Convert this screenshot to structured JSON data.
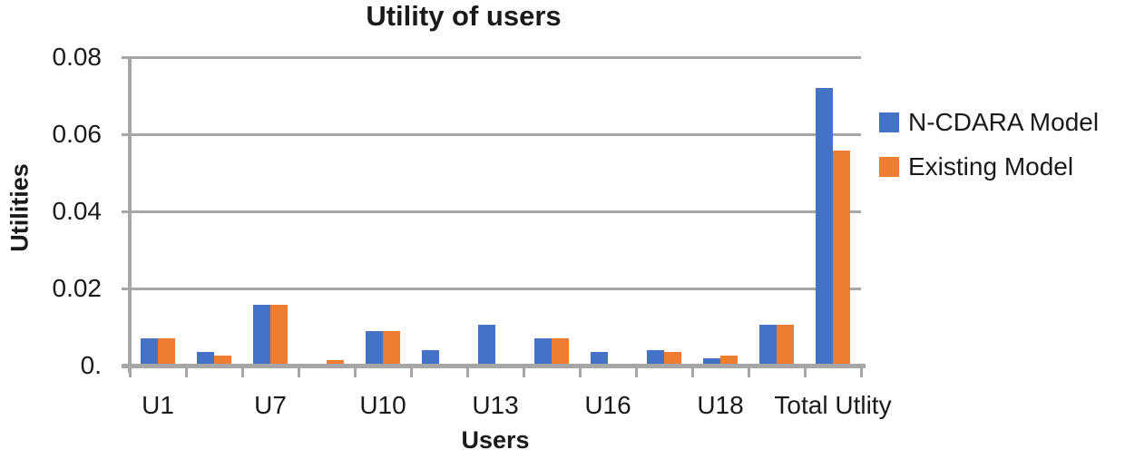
{
  "chart_data": {
    "type": "bar",
    "title": "Utility of users",
    "xlabel": "Users",
    "ylabel": "Utilities",
    "ylim": [
      0,
      0.08
    ],
    "ytick_step": 0.02,
    "ytick_labels": [
      "0.",
      "0.02",
      "0.04",
      "0.06",
      "0.08"
    ],
    "grid": "horizontal-only",
    "legend_position": "right",
    "categories": [
      "U1",
      "",
      "U7",
      "",
      "U10",
      "",
      "U13",
      "",
      "U16",
      "",
      "U18",
      "",
      "Total Utlity"
    ],
    "series": [
      {
        "name": "N-CDARA Model",
        "color": "#4472C4",
        "values": [
          0.0065,
          0.003,
          0.0152,
          0,
          0.0085,
          0.0035,
          0.01,
          0.0065,
          0.003,
          0.0035,
          0.0015,
          0.01,
          0.0715
        ]
      },
      {
        "name": "Existing Model",
        "color": "#ED7D31",
        "values": [
          0.0065,
          0.002,
          0.0153,
          0.001,
          0.0085,
          0,
          0,
          0.0065,
          0,
          0.003,
          0.002,
          0.01,
          0.0553
        ]
      }
    ]
  },
  "colors": {
    "grid": "#a6a6a6",
    "axis": "#a6a6a6",
    "text": "#1a1a1a",
    "background": "#ffffff"
  }
}
